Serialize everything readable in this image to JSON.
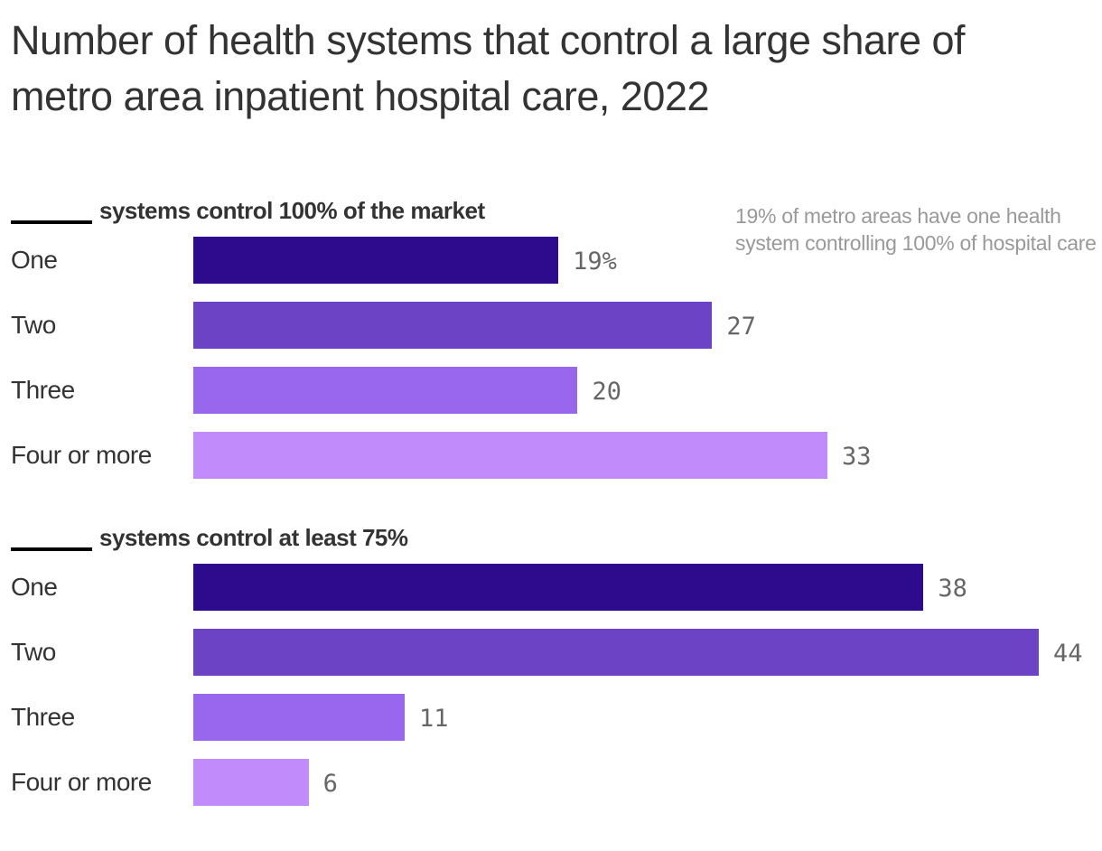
{
  "chart_data": {
    "type": "bar",
    "orientation": "horizontal",
    "title": "Number of health systems that control a large share of metro area inpatient hospital care, 2022",
    "xlim": [
      0,
      44
    ],
    "grid": false,
    "colors": [
      "#2e0b8c",
      "#6c43c5",
      "#9966ee",
      "#c28bfc"
    ],
    "groups": [
      {
        "heading": "systems control 100% of the market",
        "categories": [
          "One",
          "Two",
          "Three",
          "Four or more"
        ],
        "values": [
          19,
          27,
          20,
          33
        ],
        "labels": [
          "19%",
          "27",
          "20",
          "33"
        ]
      },
      {
        "heading": "systems control at least 75%",
        "categories": [
          "One",
          "Two",
          "Three",
          "Four or more"
        ],
        "values": [
          38,
          44,
          11,
          6
        ],
        "labels": [
          "38",
          "44",
          "11",
          "6"
        ]
      }
    ],
    "annotation": "19% of metro areas have one health system controlling 100% of hospital care"
  }
}
